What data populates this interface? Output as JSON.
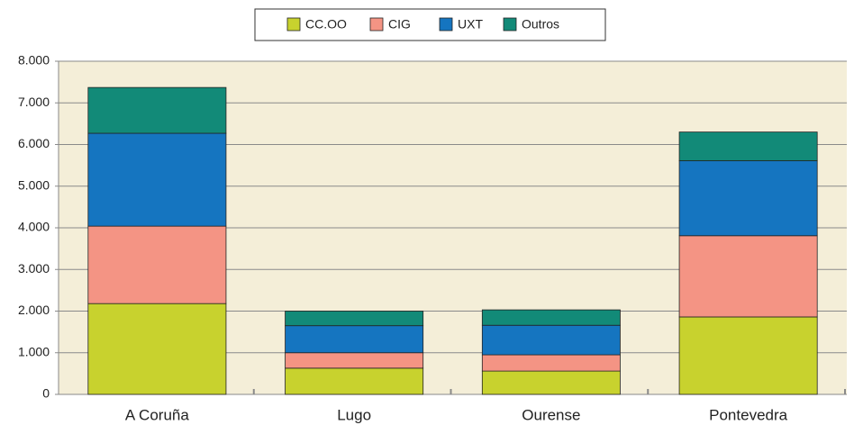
{
  "chart_data": {
    "type": "stacked_bar",
    "categories": [
      "A Coruña",
      "Lugo",
      "Ourense",
      "Pontevedra"
    ],
    "series": [
      {
        "name": "CC.OO",
        "color": "#c8d22e",
        "values": [
          2180,
          630,
          560,
          1860
        ]
      },
      {
        "name": "CIG",
        "color": "#f49484",
        "values": [
          1860,
          370,
          390,
          1950
        ]
      },
      {
        "name": "UXT",
        "color": "#1575c0",
        "values": [
          2230,
          650,
          710,
          1800
        ]
      },
      {
        "name": "Outros",
        "color": "#128a78",
        "values": [
          1100,
          350,
          370,
          690
        ]
      }
    ],
    "ylim": [
      0,
      8000
    ],
    "yticks": [
      0,
      {
        "value": 1000,
        "label": "1.000"
      },
      {
        "value": 2000,
        "label": "2.000"
      },
      {
        "value": 3000,
        "label": "3.000"
      },
      {
        "value": 4000,
        "label": "4.000"
      },
      {
        "value": 5000,
        "label": "5.000"
      },
      {
        "value": 6000,
        "label": "6.000"
      },
      {
        "value": 7000,
        "label": "7.000"
      },
      {
        "value": 8000,
        "label": "8.000"
      }
    ],
    "grid": true,
    "legend": "top"
  }
}
